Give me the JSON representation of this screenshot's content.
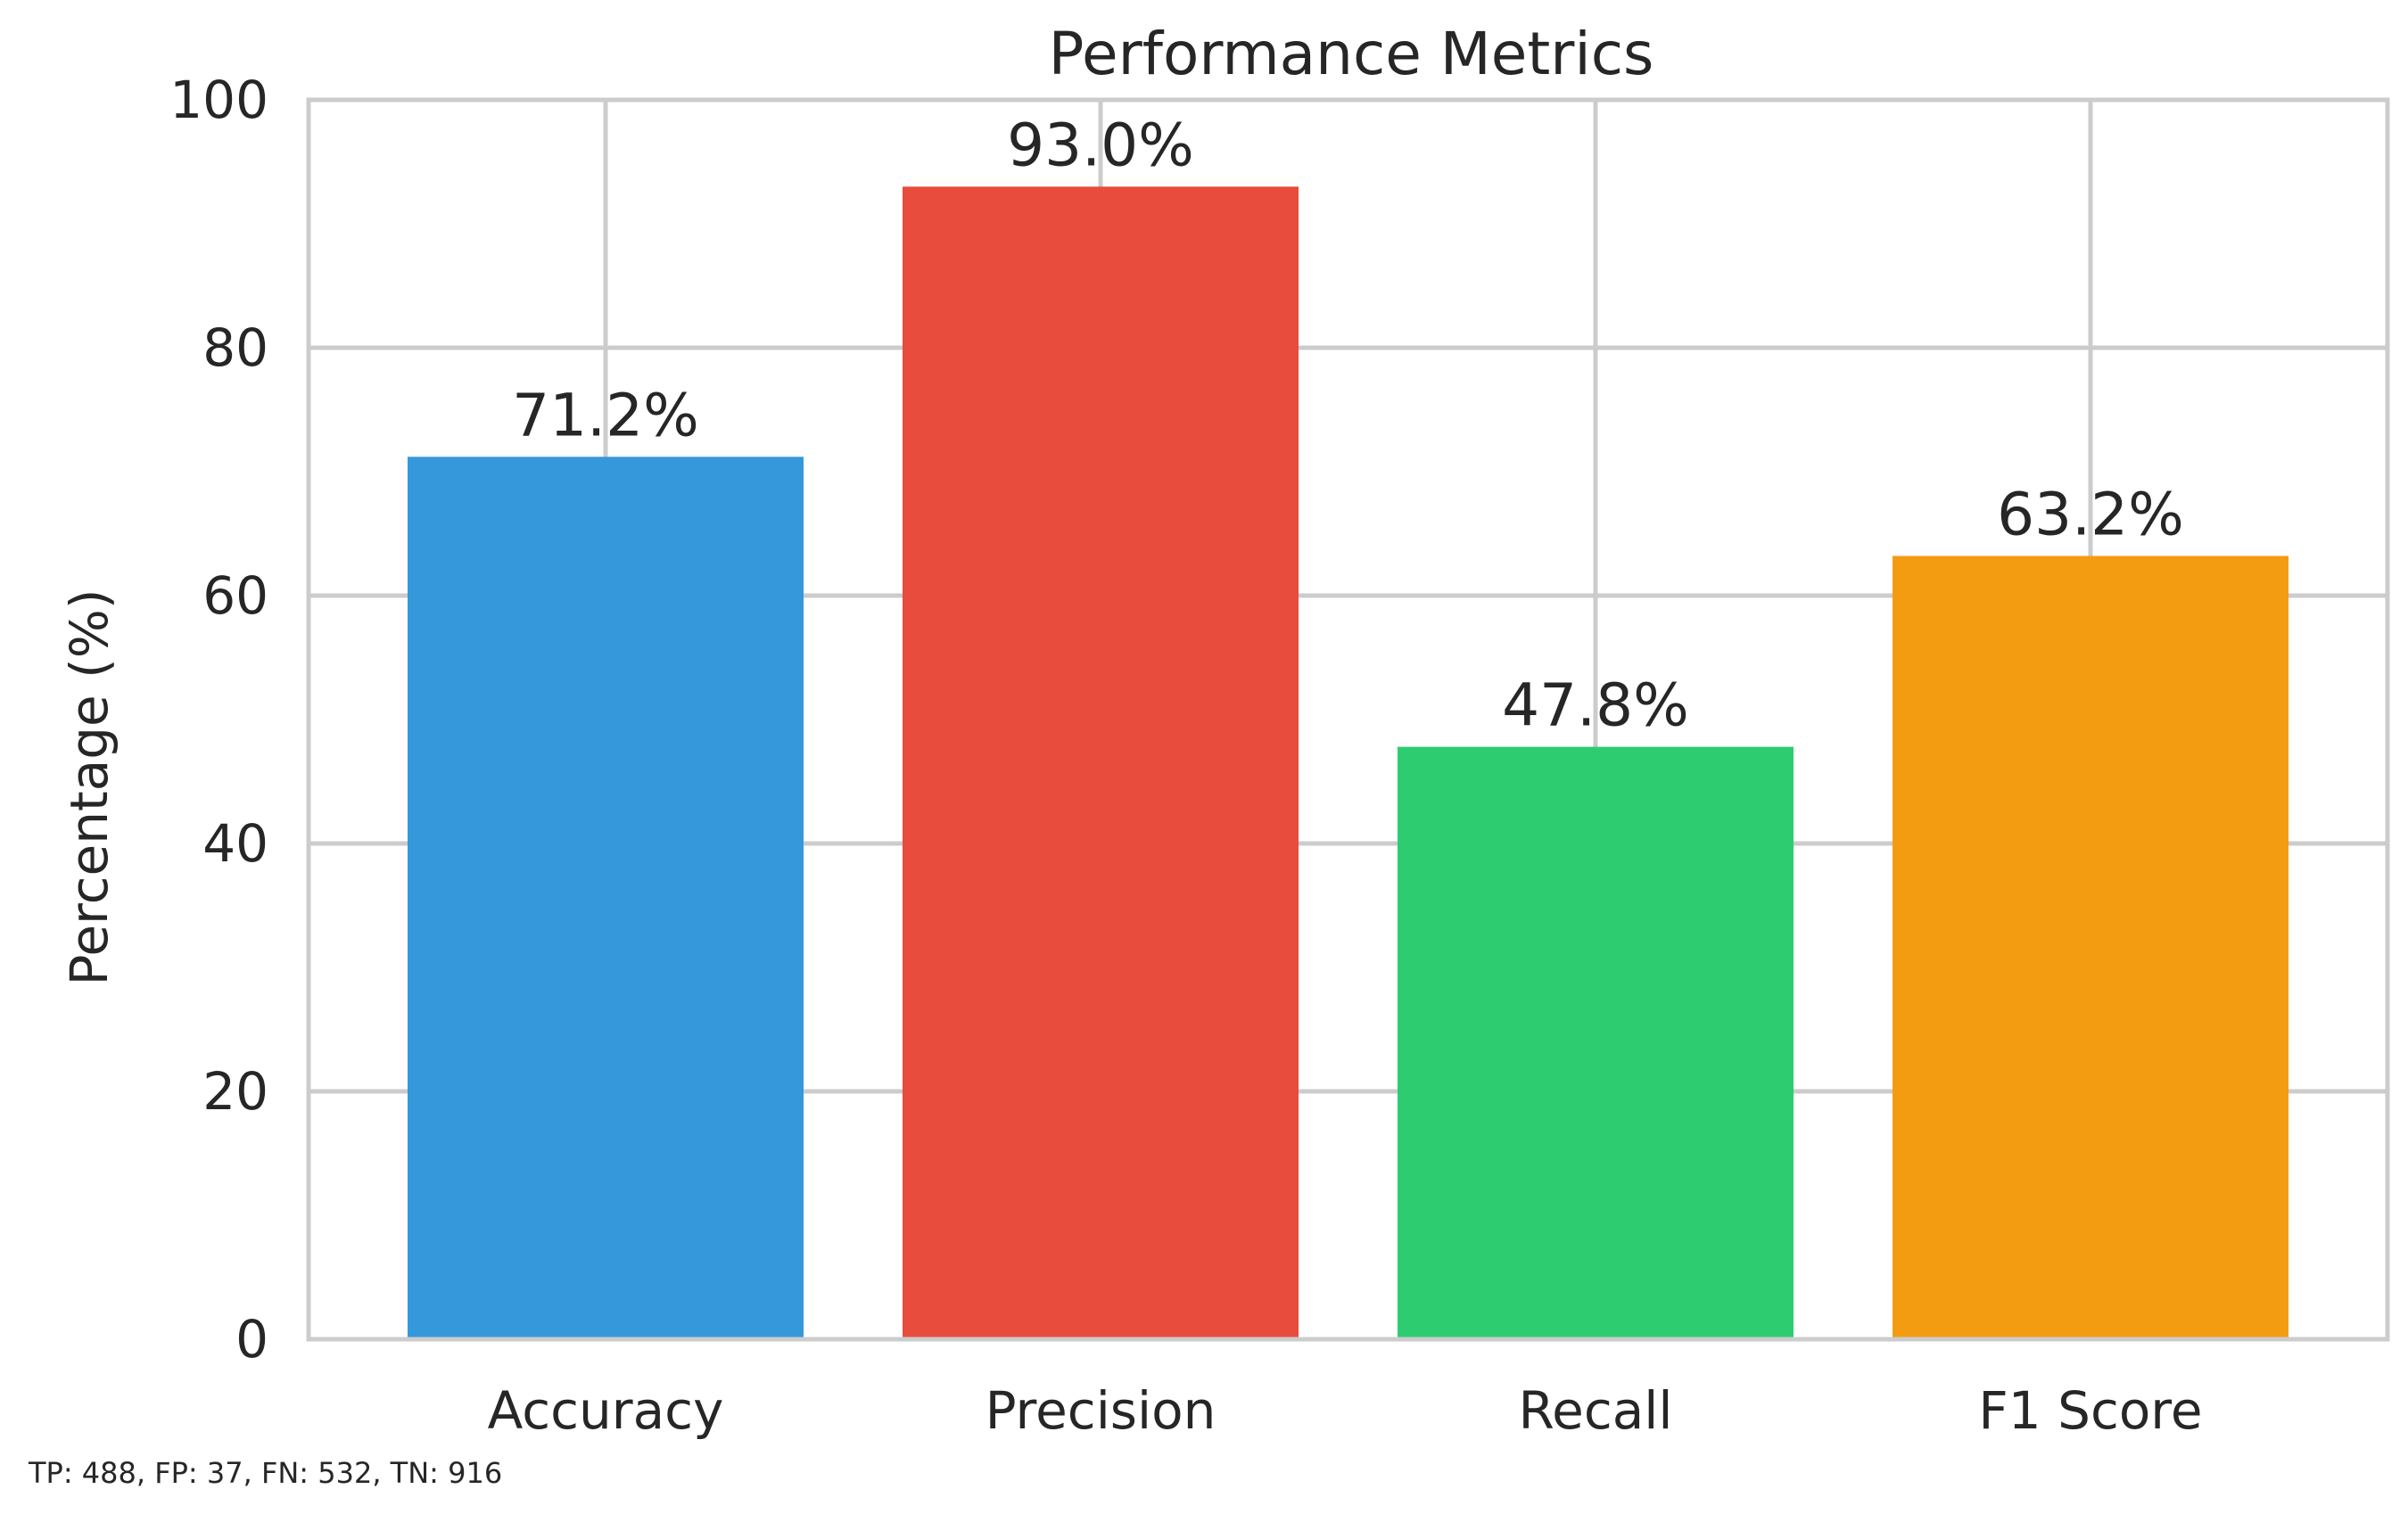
{
  "chart_data": {
    "type": "bar",
    "title": "Performance Metrics",
    "xlabel": "",
    "ylabel": "Percentage (%)",
    "ylim": [
      0,
      100
    ],
    "yticks": [
      0,
      20,
      40,
      60,
      80,
      100
    ],
    "grid": true,
    "categories": [
      "Accuracy",
      "Precision",
      "Recall",
      "F1 Score"
    ],
    "values": [
      71.2,
      93.0,
      47.8,
      63.2
    ],
    "value_labels": [
      "71.2%",
      "93.0%",
      "47.8%",
      "63.2%"
    ],
    "colors": [
      "#3498db",
      "#e74c3c",
      "#2ecc71",
      "#f39c12"
    ],
    "grid_color": "#cccccc",
    "axes_edge_color": "#cccccc"
  },
  "footnote": "TP: 488, FP: 37, FN: 532, TN: 916"
}
